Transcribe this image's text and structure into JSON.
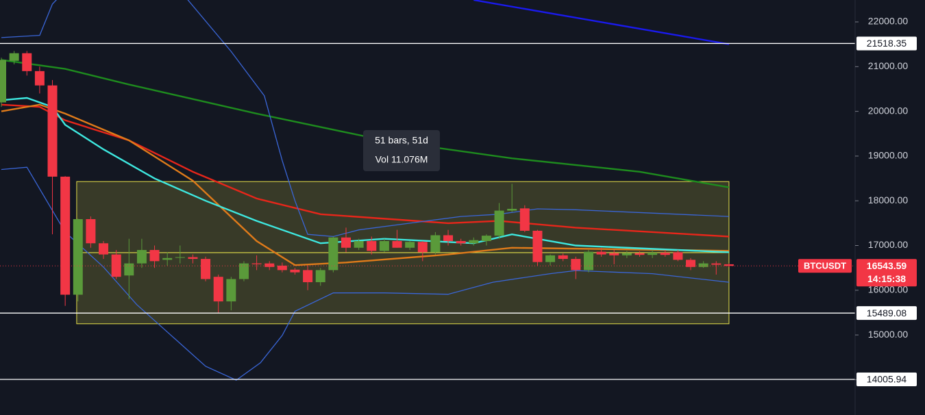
{
  "chart_data": {
    "type": "candlestick",
    "symbol": "BTCUSDT",
    "countdown": "14:15:38",
    "up_color": "#5a9a3a",
    "down_color": "#f23645",
    "open": [
      20200,
      21130,
      21300,
      20900,
      20580,
      18540,
      15900,
      17590,
      17050,
      16800,
      16330,
      16600,
      16900,
      16680,
      16730,
      16740,
      16700,
      16300,
      15750,
      16250,
      16600,
      16600,
      16550,
      16460,
      16450,
      16180,
      16450,
      17180,
      16950,
      17100,
      16880,
      17100,
      16950,
      17080,
      16850,
      17230,
      17100,
      17050,
      17100,
      17220,
      17780,
      17830,
      17330,
      16630,
      16780,
      16700,
      16450,
      16860,
      16830,
      16780,
      16830,
      16790,
      16840,
      16850,
      16680,
      16520,
      16600,
      16580
    ],
    "high": [
      21200,
      21350,
      21350,
      21000,
      20700,
      18550,
      17600,
      17650,
      17100,
      16900,
      17150,
      17150,
      17000,
      16850,
      17000,
      16800,
      16750,
      16350,
      16300,
      16650,
      16780,
      16650,
      16620,
      16500,
      16550,
      16500,
      17200,
      17400,
      17150,
      17200,
      17150,
      17350,
      17100,
      17100,
      17300,
      17350,
      17150,
      17180,
      17250,
      17950,
      18380,
      17900,
      17350,
      16800,
      16820,
      16750,
      16900,
      16950,
      16900,
      16880,
      16870,
      16900,
      16900,
      16900,
      16720,
      16650,
      16650,
      16600
    ],
    "low": [
      20100,
      21050,
      20800,
      20400,
      17250,
      15650,
      15750,
      16950,
      16700,
      16250,
      15800,
      16500,
      16500,
      16550,
      16600,
      16600,
      16200,
      15500,
      15550,
      16200,
      16450,
      16450,
      16400,
      16350,
      16000,
      16100,
      16400,
      16850,
      16900,
      16800,
      16850,
      16950,
      16900,
      16650,
      16800,
      17000,
      17000,
      17000,
      17000,
      17150,
      17750,
      17300,
      16550,
      16550,
      16650,
      16250,
      16400,
      16750,
      16580,
      16720,
      16750,
      16720,
      16750,
      16650,
      16450,
      16500,
      16350,
      16520
    ],
    "close": [
      21150,
      21300,
      20900,
      20580,
      18540,
      15900,
      17590,
      17050,
      16800,
      16300,
      16600,
      16900,
      16650,
      16720,
      16740,
      16700,
      16250,
      15750,
      16250,
      16600,
      16580,
      16520,
      16450,
      16400,
      16180,
      16450,
      17180,
      16950,
      17100,
      16880,
      17100,
      16950,
      17080,
      16850,
      17230,
      17100,
      17050,
      17120,
      17220,
      17780,
      17820,
      17330,
      16630,
      16780,
      16700,
      16450,
      16860,
      16800,
      16780,
      16830,
      16790,
      16840,
      16790,
      16680,
      16520,
      16600,
      16570,
      16543.59
    ],
    "ylim": [
      13210,
      22490
    ],
    "yticks": [
      {
        "value": 22000,
        "label": "22000.00"
      },
      {
        "value": 21000,
        "label": "21000.00"
      },
      {
        "value": 20000,
        "label": "20000.00"
      },
      {
        "value": 19000,
        "label": "19000.00"
      },
      {
        "value": 18000,
        "label": "18000.00"
      },
      {
        "value": 17000,
        "label": "17000.00"
      },
      {
        "value": 16000,
        "label": "16000.00"
      },
      {
        "value": 15000,
        "label": "15000.00"
      },
      {
        "value": 14000,
        "label": "14000.00"
      }
    ],
    "levels": [
      21518.35,
      15489.08,
      14005.94
    ],
    "level_color": "#ffffff",
    "lines": [
      {
        "color": "#1e8c1e",
        "x": [
          0,
          5,
          10,
          20,
          30,
          40,
          50,
          57
        ],
        "values": [
          21150,
          20950,
          20600,
          19950,
          19350,
          18950,
          18650,
          18300
        ]
      },
      {
        "color": "#e8261a",
        "x": [
          0,
          3,
          5,
          10,
          15,
          20,
          25,
          35,
          39,
          45,
          57
        ],
        "values": [
          20150,
          20100,
          19800,
          19350,
          18650,
          18050,
          17700,
          17500,
          17550,
          17400,
          17200
        ]
      },
      {
        "color": "#e07b1a",
        "x": [
          0,
          3,
          5,
          10,
          15,
          20,
          23,
          27,
          35,
          40,
          57
        ],
        "values": [
          20000,
          20150,
          19950,
          19350,
          18450,
          17100,
          16560,
          16620,
          16800,
          16950,
          16880
        ]
      },
      {
        "color": "#3ee8e0",
        "x": [
          0,
          2,
          4,
          5,
          8,
          12,
          16,
          20,
          25,
          30,
          37,
          40,
          45,
          57
        ],
        "values": [
          20250,
          20300,
          20100,
          19700,
          19150,
          18500,
          18000,
          17550,
          17050,
          17150,
          17050,
          17250,
          17000,
          16850
        ]
      },
      {
        "color": "#3a66d8",
        "x": [
          0,
          3,
          4,
          5,
          14,
          18,
          20.6,
          22,
          23,
          24,
          26,
          28,
          32,
          36,
          39,
          42,
          45,
          57
        ],
        "values": [
          21650,
          21700,
          22400,
          22700,
          22700,
          21340,
          20347,
          18900,
          18000,
          17250,
          17200,
          17350,
          17500,
          17650,
          17700,
          17820,
          17800,
          17650
        ]
      },
      {
        "color": "#3a66d8",
        "x": [
          0,
          2,
          5,
          8,
          10.6,
          13.3,
          16,
          18.4,
          20.3,
          22,
          23,
          26,
          30,
          35,
          38.5,
          43,
          45,
          51,
          57
        ],
        "values": [
          18700,
          18750,
          17300,
          16520,
          15680,
          14990,
          14300,
          13990,
          14380,
          14990,
          15530,
          15940,
          15940,
          15910,
          16180,
          16370,
          16440,
          16370,
          16180
        ]
      },
      {
        "color": "#1a1aee",
        "x": [
          37,
          57
        ],
        "values": [
          22490,
          21500
        ]
      }
    ],
    "range": {
      "x": [
        5.9,
        57
      ],
      "top": 18430,
      "bottom": 15250,
      "mid": 16840,
      "color": "#e6e04a"
    },
    "tooltip": {
      "bars": "51 bars, 51d",
      "volume": "Vol 11.076M"
    }
  }
}
